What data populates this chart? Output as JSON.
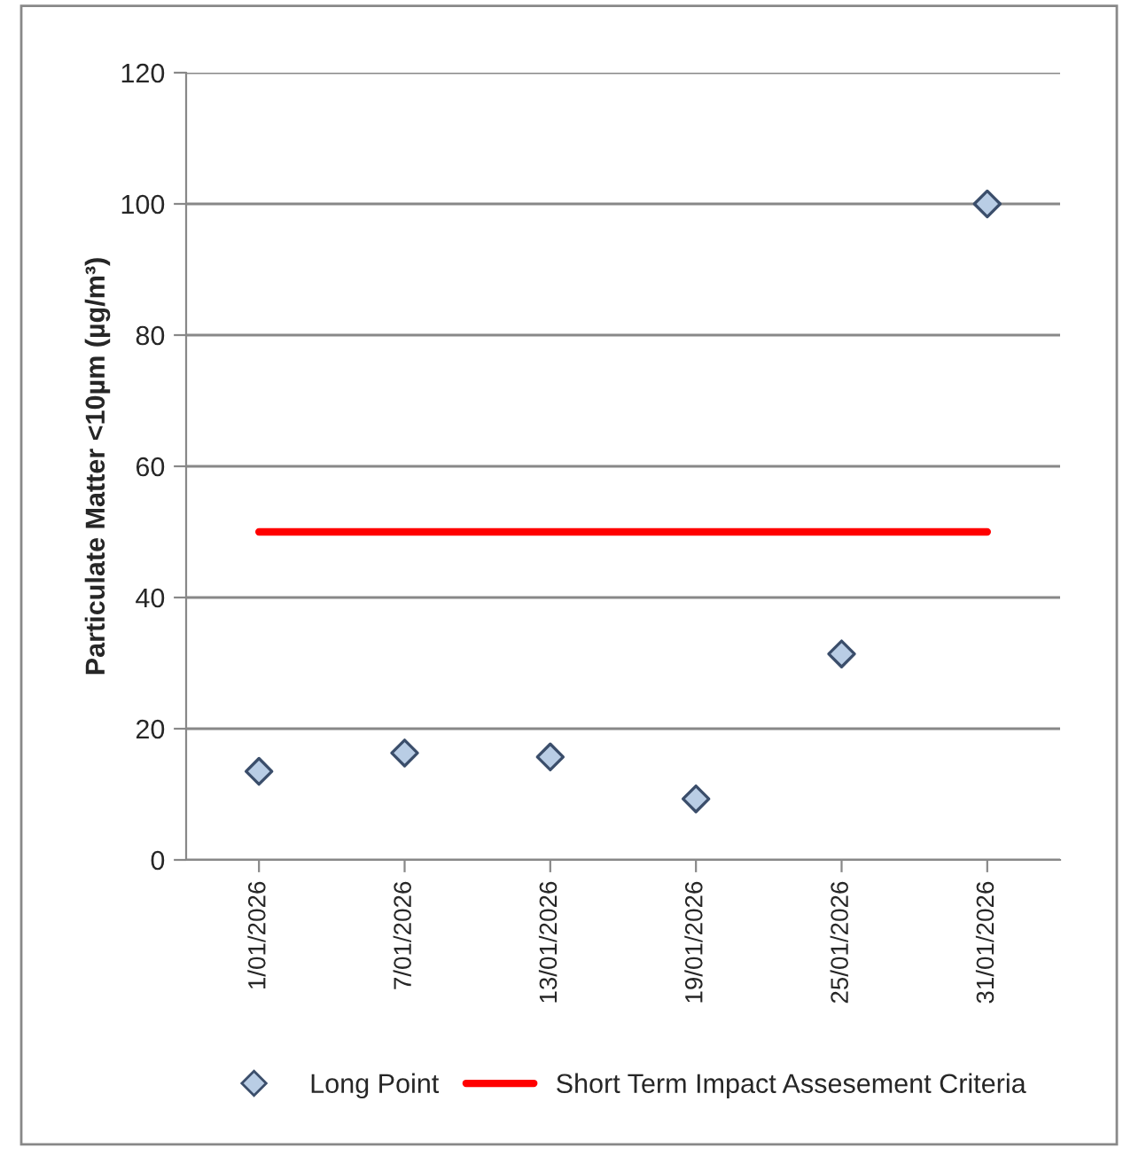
{
  "chart_data": {
    "type": "scatter",
    "ylabel": "Particulate Matter <10µm (µg/m³)",
    "categories": [
      "1/01/2026",
      "7/01/2026",
      "13/01/2026",
      "19/01/2026",
      "25/01/2026",
      "31/01/2026"
    ],
    "series": [
      {
        "name": "Long Point",
        "color": "#b9cde5",
        "marker": "diamond",
        "values": [
          13.5,
          16.3,
          15.7,
          9.3,
          31.4,
          100
        ]
      },
      {
        "name": "Short Term Impact Assesement Criteria",
        "type": "line",
        "color": "#ff0000",
        "marker": "none",
        "values": [
          50,
          50,
          50,
          50,
          50,
          50
        ]
      }
    ],
    "ylim": [
      0,
      120
    ],
    "yticks": [
      0,
      20,
      40,
      60,
      80,
      100,
      120
    ],
    "grid": "y",
    "legend": "bottom"
  }
}
